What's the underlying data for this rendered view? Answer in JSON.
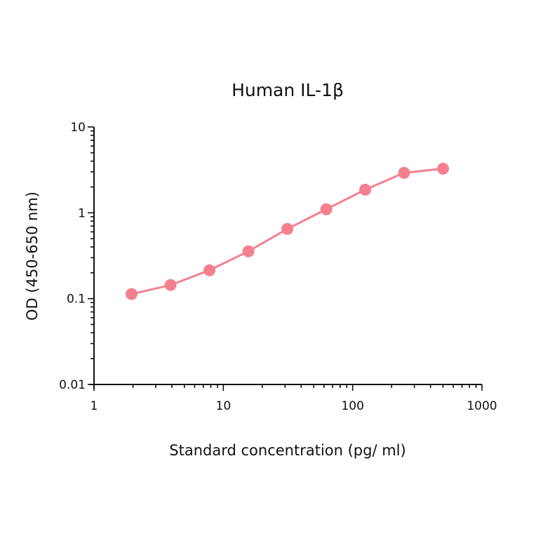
{
  "chart_data": {
    "type": "line",
    "title": "Human IL-1β",
    "xlabel": "Standard concentration (pg/ ml)",
    "ylabel": "OD (450-650 nm)",
    "xscale": "log",
    "yscale": "log",
    "xlim": [
      1,
      1000
    ],
    "ylim": [
      0.01,
      10
    ],
    "x_tick_labels": [
      "1",
      "10",
      "100",
      "1000"
    ],
    "y_tick_labels": [
      "0.01",
      "0.1",
      "1",
      "10"
    ],
    "grid": false,
    "legend": null,
    "series": [
      {
        "name": "Human IL-1β",
        "color": "#f4808f",
        "x": [
          1.95,
          3.91,
          7.81,
          15.63,
          31.25,
          62.5,
          125,
          250,
          500
        ],
        "values": [
          0.113,
          0.144,
          0.214,
          0.356,
          0.649,
          1.1,
          1.86,
          2.92,
          3.27
        ]
      }
    ]
  }
}
